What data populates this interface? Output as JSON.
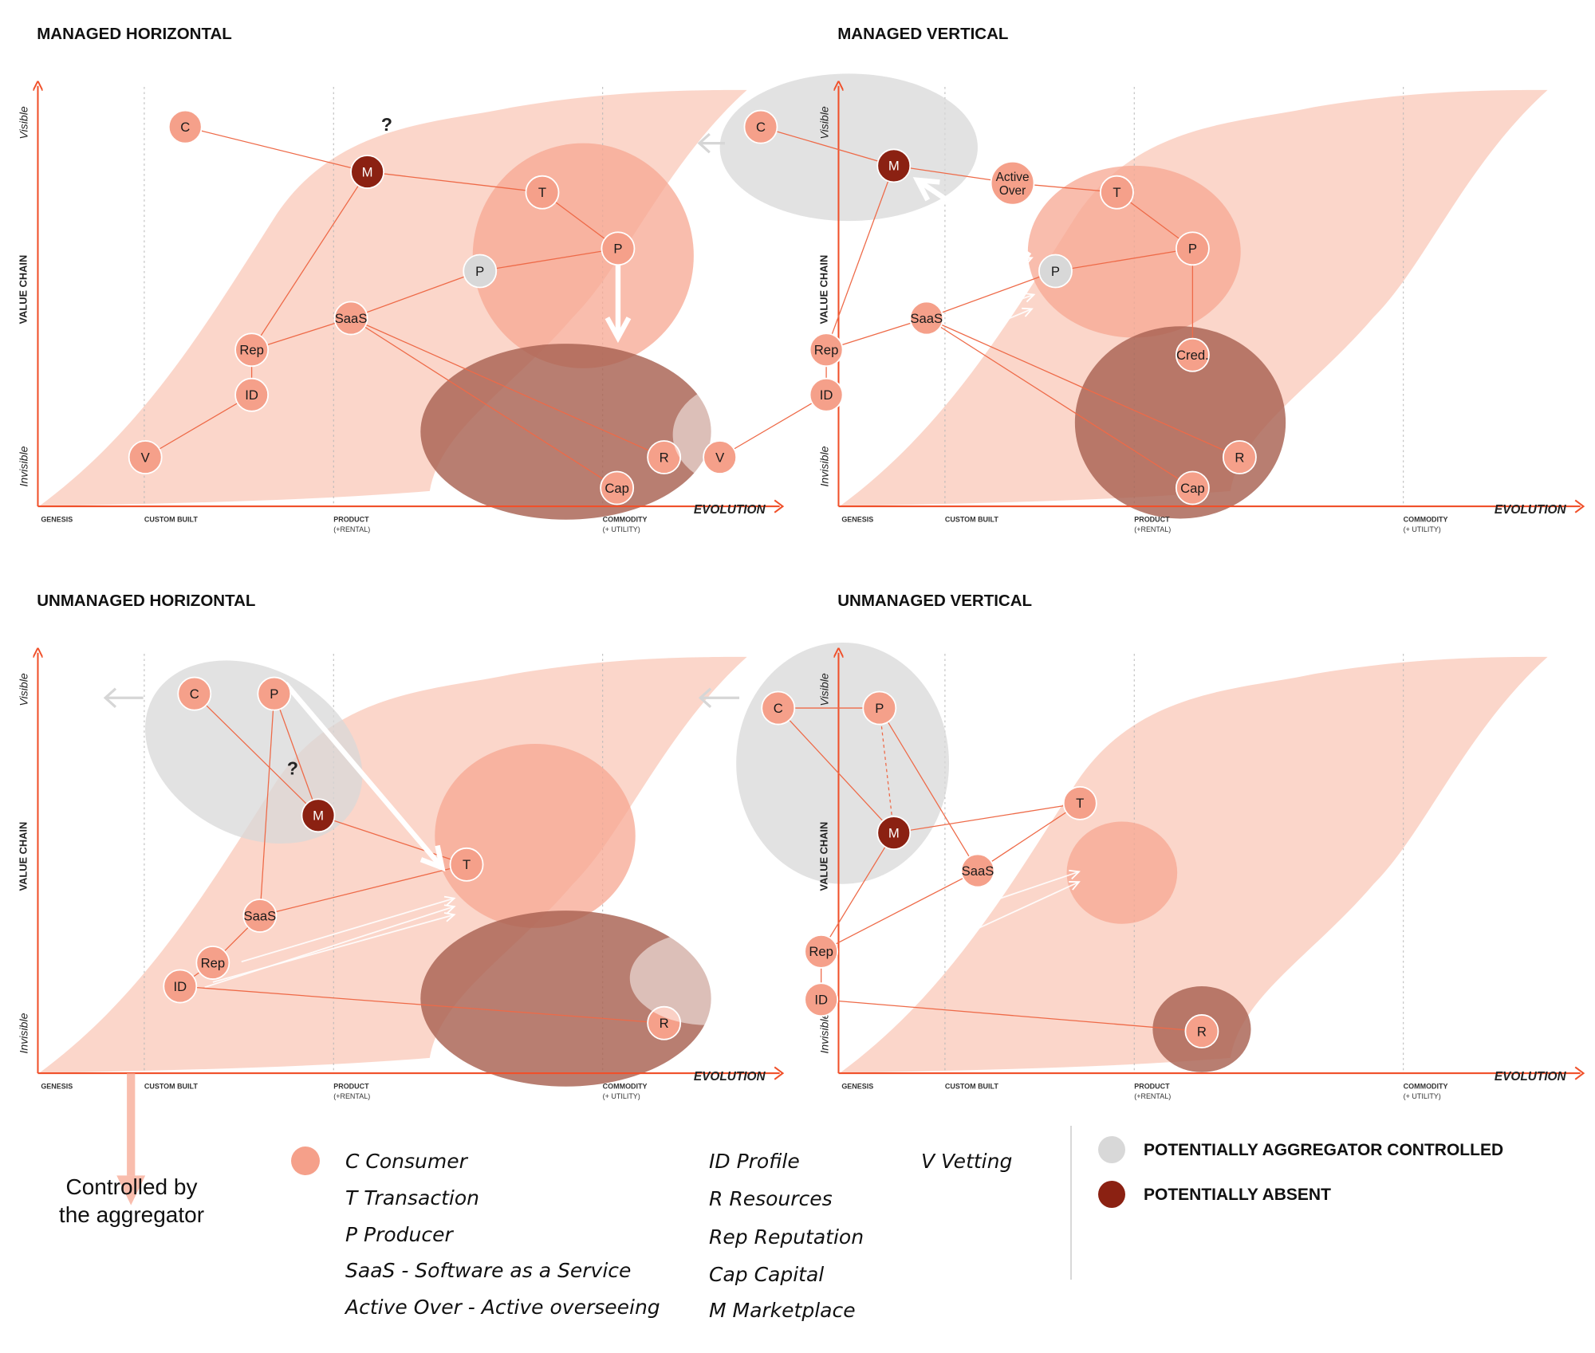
{
  "colors": {
    "axis": "#f0502a",
    "line": "#ee6a48",
    "node": "#f5a08a",
    "node_stroke": "#ffffff",
    "absent": "#8b2112",
    "grey": "#d8d8d8",
    "band": "#f9c8b8",
    "region_light": "#f7a791",
    "region_dark": "#a86252",
    "arrow_grey": "#d6d6d6"
  },
  "axis_labels": {
    "y_top": "Visible",
    "y_mid": "VALUE CHAIN",
    "y_bottom": "Invisible",
    "x": "EVOLUTION",
    "stages": [
      {
        "line1": "GENESIS",
        "line2": ""
      },
      {
        "line1": "CUSTOM BUILT",
        "line2": ""
      },
      {
        "line1": "PRODUCT",
        "line2": "(+RENTAL)"
      },
      {
        "line1": "COMMODITY",
        "line2": "(+ UTILITY)"
      }
    ]
  },
  "panels": [
    {
      "title": "MANAGED HORIZONTAL",
      "question": "?",
      "nodes": [
        {
          "id": "C",
          "label": "C",
          "kind": "node"
        },
        {
          "id": "M",
          "label": "M",
          "kind": "absent"
        },
        {
          "id": "T",
          "label": "T",
          "kind": "node"
        },
        {
          "id": "P1",
          "label": "P",
          "kind": "node"
        },
        {
          "id": "P2",
          "label": "P",
          "kind": "grey"
        },
        {
          "id": "SaaS",
          "label": "SaaS",
          "kind": "node"
        },
        {
          "id": "Rep",
          "label": "Rep",
          "kind": "node"
        },
        {
          "id": "ID",
          "label": "ID",
          "kind": "node"
        },
        {
          "id": "V",
          "label": "V",
          "kind": "node"
        },
        {
          "id": "R",
          "label": "R",
          "kind": "node"
        },
        {
          "id": "Cap",
          "label": "Cap",
          "kind": "node"
        }
      ]
    },
    {
      "title": "MANAGED VERTICAL",
      "nodes": [
        {
          "id": "C",
          "label": "C",
          "kind": "node"
        },
        {
          "id": "M",
          "label": "M",
          "kind": "absent"
        },
        {
          "id": "AO",
          "label": "Active|Over",
          "kind": "node"
        },
        {
          "id": "T",
          "label": "T",
          "kind": "node"
        },
        {
          "id": "P1",
          "label": "P",
          "kind": "node"
        },
        {
          "id": "P2",
          "label": "P",
          "kind": "grey"
        },
        {
          "id": "SaaS",
          "label": "SaaS",
          "kind": "node"
        },
        {
          "id": "Cred",
          "label": "Cred.",
          "kind": "node"
        },
        {
          "id": "Rep",
          "label": "Rep",
          "kind": "node"
        },
        {
          "id": "ID",
          "label": "ID",
          "kind": "node"
        },
        {
          "id": "V",
          "label": "V",
          "kind": "node"
        },
        {
          "id": "R",
          "label": "R",
          "kind": "node"
        },
        {
          "id": "Cap",
          "label": "Cap",
          "kind": "node"
        }
      ]
    },
    {
      "title": "UNMANAGED HORIZONTAL",
      "question": "?",
      "nodes": [
        {
          "id": "C",
          "label": "C",
          "kind": "node"
        },
        {
          "id": "P",
          "label": "P",
          "kind": "node"
        },
        {
          "id": "M",
          "label": "M",
          "kind": "absent"
        },
        {
          "id": "T",
          "label": "T",
          "kind": "node"
        },
        {
          "id": "SaaS",
          "label": "SaaS",
          "kind": "node"
        },
        {
          "id": "Rep",
          "label": "Rep",
          "kind": "node"
        },
        {
          "id": "ID",
          "label": "ID",
          "kind": "node"
        },
        {
          "id": "R",
          "label": "R",
          "kind": "node"
        }
      ]
    },
    {
      "title": "UNMANAGED VERTICAL",
      "nodes": [
        {
          "id": "C",
          "label": "C",
          "kind": "node"
        },
        {
          "id": "P",
          "label": "P",
          "kind": "node"
        },
        {
          "id": "M",
          "label": "M",
          "kind": "absent"
        },
        {
          "id": "T",
          "label": "T",
          "kind": "node"
        },
        {
          "id": "SaaS",
          "label": "SaaS",
          "kind": "node"
        },
        {
          "id": "Rep",
          "label": "Rep",
          "kind": "node"
        },
        {
          "id": "ID",
          "label": "ID",
          "kind": "node"
        },
        {
          "id": "R",
          "label": "R",
          "kind": "node"
        }
      ]
    }
  ],
  "controlled_note": {
    "line1": "Controlled by",
    "line2": "the aggregator"
  },
  "legend": {
    "col1": [
      "C Consumer",
      "T Transaction",
      "P Producer",
      "SaaS - Software as a Service",
      "Active Over - Active overseeing"
    ],
    "col2": [
      "ID Profile",
      "R Resources",
      "Rep Reputation",
      "Cap Capital",
      "M Marketplace"
    ],
    "col3": [
      "V Vetting"
    ],
    "status": [
      {
        "label": "POTENTIALLY AGGREGATOR CONTROLLED",
        "kind": "grey"
      },
      {
        "label": "POTENTIALLY ABSENT",
        "kind": "absent"
      }
    ]
  }
}
